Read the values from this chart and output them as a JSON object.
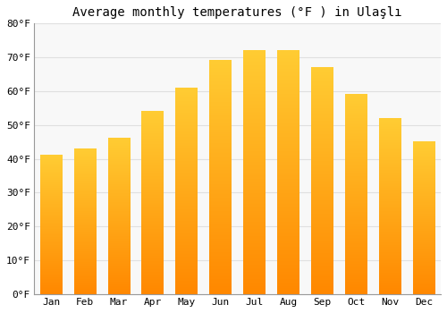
{
  "title": "Average monthly temperatures (°F ) in Ulaşlı",
  "months": [
    "Jan",
    "Feb",
    "Mar",
    "Apr",
    "May",
    "Jun",
    "Jul",
    "Aug",
    "Sep",
    "Oct",
    "Nov",
    "Dec"
  ],
  "values": [
    41,
    43,
    46,
    54,
    61,
    69,
    72,
    72,
    67,
    59,
    52,
    45
  ],
  "bar_color_top": "#FFCC33",
  "bar_color_bottom": "#FF8800",
  "ylim": [
    0,
    80
  ],
  "yticks": [
    0,
    10,
    20,
    30,
    40,
    50,
    60,
    70,
    80
  ],
  "ytick_labels": [
    "0°F",
    "10°F",
    "20°F",
    "30°F",
    "40°F",
    "50°F",
    "60°F",
    "70°F",
    "80°F"
  ],
  "background_color": "#ffffff",
  "plot_bg_color": "#f8f8f8",
  "grid_color": "#e0e0e0",
  "title_fontsize": 10,
  "tick_fontsize": 8,
  "font_family": "monospace"
}
